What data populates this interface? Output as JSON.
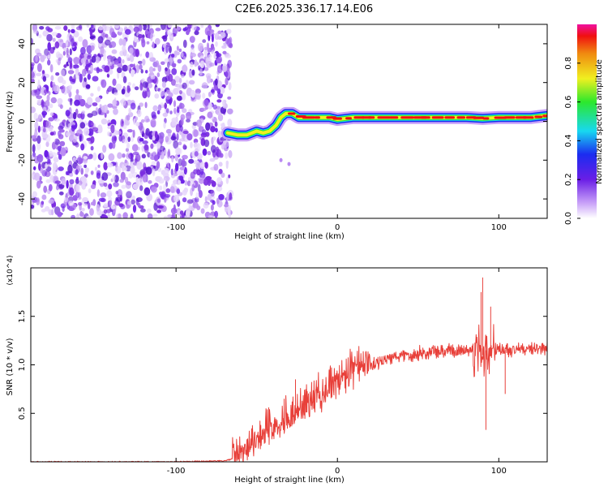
{
  "figure_title": "C2E6.2025.336.17.14.E06",
  "colors": {
    "snr_line": "#e8403a",
    "noise_purple": "#7a2be0",
    "axis": "#000000"
  },
  "chart_data": [
    {
      "type": "heatmap",
      "name": "spectrogram",
      "title": "C2E6.2025.336.17.14.E06",
      "xlabel": "Height of straight line (km)",
      "ylabel": "Frequency (Hz)",
      "xlim": [
        -190,
        130
      ],
      "ylim": [
        -50,
        50
      ],
      "xticks": [
        -100,
        0,
        100
      ],
      "yticks": [
        -40,
        -20,
        0,
        20,
        40
      ],
      "noise_region_x": [
        -190,
        -66
      ],
      "signal_track": {
        "x": [
          -68,
          -62,
          -56,
          -50,
          -46,
          -42,
          -38,
          -35,
          -32,
          -28,
          -24,
          -20,
          -15,
          -10,
          -5,
          0,
          10,
          20,
          40,
          60,
          80,
          90,
          100,
          110,
          120,
          130
        ],
        "freq": [
          -6,
          -7,
          -7,
          -5,
          -6,
          -5,
          -2,
          2,
          4,
          4,
          2,
          2,
          2,
          2,
          2,
          1,
          2,
          2,
          2,
          2,
          2,
          1.5,
          2,
          2,
          2,
          3
        ]
      },
      "colorbar": {
        "label": "Normalized spectral amplitude",
        "range": [
          0,
          1
        ],
        "ticks": [
          "0.0",
          "0.2",
          "0.4",
          "0.6",
          "0.8"
        ]
      }
    },
    {
      "type": "line",
      "name": "snr",
      "xlabel": "Height of straight line (km)",
      "ylabel": "SNR (10 * v/v)",
      "y_multiplier": "(x10^4)",
      "xlim": [
        -190,
        130
      ],
      "ylim": [
        0,
        2.0
      ],
      "xticks": [
        -100,
        0,
        100
      ],
      "yticks": [
        "0.5",
        "1.0",
        "1.5"
      ],
      "series": [
        {
          "name": "SNR",
          "x": [
            -190,
            -150,
            -100,
            -70,
            -65,
            -60,
            -55,
            -50,
            -45,
            -40,
            -35,
            -30,
            -25,
            -20,
            -15,
            -10,
            -5,
            0,
            10,
            20,
            30,
            40,
            50,
            60,
            70,
            80,
            85,
            88,
            90,
            92,
            95,
            100,
            110,
            120,
            130
          ],
          "y": [
            0.0,
            0.0,
            0.0,
            0.01,
            0.03,
            0.07,
            0.15,
            0.22,
            0.28,
            0.33,
            0.37,
            0.42,
            0.48,
            0.54,
            0.6,
            0.66,
            0.72,
            0.78,
            0.9,
            1.0,
            1.06,
            1.1,
            1.12,
            1.13,
            1.14,
            1.15,
            1.16,
            1.15,
            1.1,
            1.15,
            1.13,
            1.15,
            1.16,
            1.16,
            1.17
          ]
        }
      ]
    }
  ]
}
